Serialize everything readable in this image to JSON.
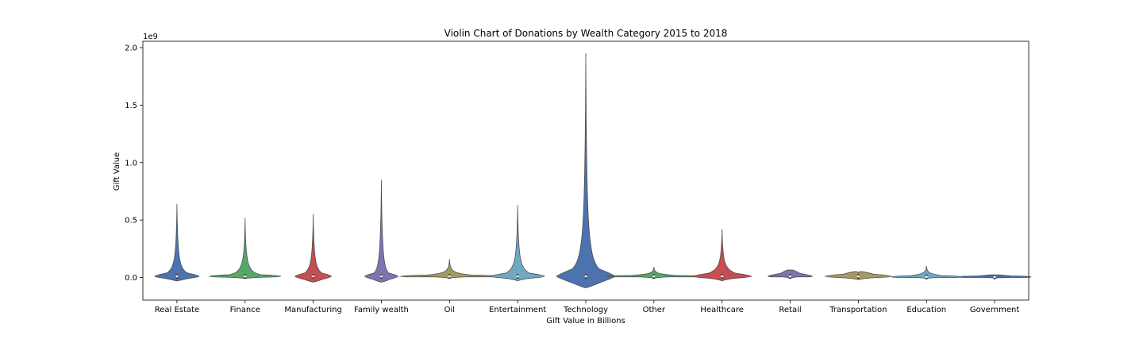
{
  "chart_data": {
    "type": "violin",
    "title": "Violin Chart of Donations by Wealth Category 2015 to 2018",
    "xlabel": "Gift Value in Billions",
    "ylabel": "Gift Value",
    "offset_label": "1e9",
    "ylim": [
      -0.2,
      2.05
    ],
    "y_ticks": [
      "0.0",
      "0.5",
      "1.0",
      "1.5",
      "2.0"
    ],
    "y_tick_values": [
      0.0,
      0.5,
      1.0,
      1.5,
      2.0
    ],
    "grid": false,
    "categories": [
      "Real Estate",
      "Finance",
      "Manufacturing",
      "Family wealth",
      "Oil",
      "Entertainment",
      "Technology",
      "Other",
      "Healthcare",
      "Retail",
      "Transportation",
      "Education",
      "Government"
    ],
    "series": [
      {
        "color": "#4c72b0",
        "min": -0.03,
        "max": 0.64,
        "median": 0.01
      },
      {
        "color": "#55a868",
        "min": -0.01,
        "max": 0.52,
        "median": 0.01
      },
      {
        "color": "#c44e52",
        "min": -0.04,
        "max": 0.55,
        "median": 0.01
      },
      {
        "color": "#8172b2",
        "min": -0.04,
        "max": 0.85,
        "median": 0.01
      },
      {
        "color": "#a89960",
        "min": -0.01,
        "max": 0.16,
        "median": 0.01
      },
      {
        "color": "#6fa9c2",
        "min": -0.03,
        "max": 0.63,
        "median": 0.01
      },
      {
        "color": "#4c72b0",
        "min": -0.09,
        "max": 1.95,
        "median": 0.01
      },
      {
        "color": "#55a868",
        "min": -0.01,
        "max": 0.09,
        "median": 0.01
      },
      {
        "color": "#c44e52",
        "min": -0.03,
        "max": 0.42,
        "median": 0.01
      },
      {
        "color": "#8172b2",
        "min": -0.01,
        "max": 0.06,
        "median": 0.01
      },
      {
        "color": "#a89960",
        "min": -0.02,
        "max": 0.04,
        "median": 0.01
      },
      {
        "color": "#6fa9c2",
        "min": -0.01,
        "max": 0.1,
        "median": 0.005
      },
      {
        "color": "#4c72b0",
        "min": -0.005,
        "max": 0.02,
        "median": 0.005
      }
    ]
  }
}
